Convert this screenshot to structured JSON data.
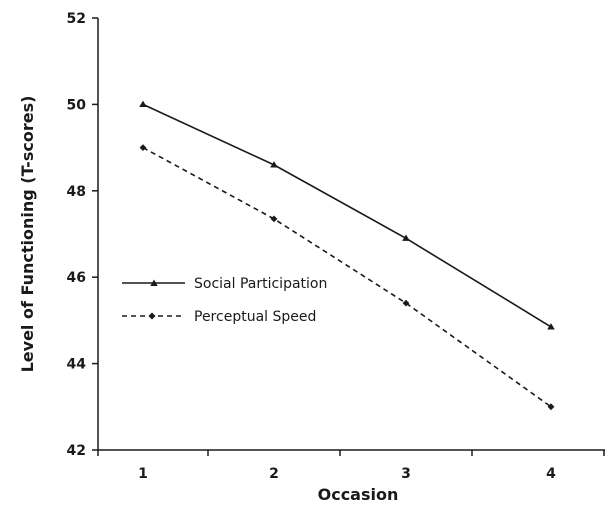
{
  "chart_data": {
    "type": "line",
    "xlabel": "Occasion",
    "ylabel": "Level of Functioning (T-scores)",
    "categories": [
      "1",
      "2",
      "3",
      "4"
    ],
    "ylim": [
      42,
      52
    ],
    "yticks": [
      "42",
      "44",
      "46",
      "48",
      "50",
      "52"
    ],
    "grid": false,
    "legend_position": "left-middle",
    "series": [
      {
        "name": "Social Participation",
        "values": [
          50.0,
          48.6,
          46.9,
          44.85
        ],
        "line_style": "solid",
        "marker": "triangle",
        "color": "#1a1a1a"
      },
      {
        "name": "Perceptual Speed",
        "values": [
          49.0,
          47.35,
          45.4,
          43.0
        ],
        "line_style": "dashed",
        "marker": "diamond",
        "color": "#1a1a1a"
      }
    ]
  }
}
